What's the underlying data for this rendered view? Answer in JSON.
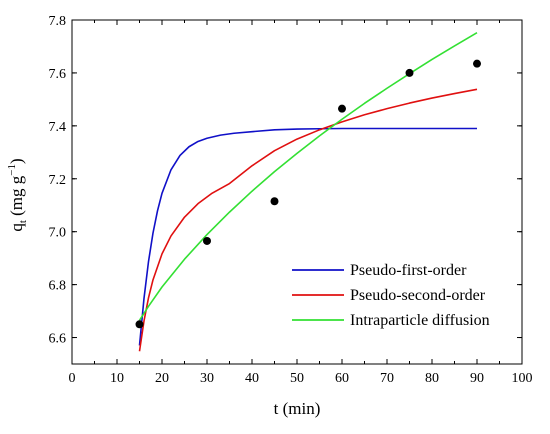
{
  "chart_data": {
    "type": "scatter",
    "xlabel": "t (min)",
    "ylabel": {
      "main": "q",
      "sub": "t",
      "unit": " (mg g",
      "sup": "−1",
      "close": ")"
    },
    "xlim": [
      0,
      100
    ],
    "ylim": [
      6.5,
      7.8
    ],
    "xticks": [
      0,
      10,
      20,
      30,
      40,
      50,
      60,
      70,
      80,
      90,
      100
    ],
    "xtick_labels": [
      "0",
      "10",
      "20",
      "30",
      "40",
      "50",
      "60",
      "70",
      "80",
      "90",
      "100"
    ],
    "yticks": [
      6.6,
      6.8,
      7.0,
      7.2,
      7.4,
      7.6,
      7.8
    ],
    "ytick_labels": [
      "6.6",
      "6.8",
      "7.0",
      "7.2",
      "7.4",
      "7.6",
      "7.8"
    ],
    "grid": false,
    "legend_position": "bottom-right",
    "points": {
      "x": [
        15,
        30,
        45,
        60,
        75,
        90
      ],
      "y": [
        6.65,
        6.965,
        7.115,
        7.465,
        7.6,
        7.635
      ],
      "color": "#000000"
    },
    "series": [
      {
        "name": "Pseudo-first-order",
        "color": "#1010c8",
        "x": [
          15,
          16,
          17,
          18,
          19,
          20,
          22,
          24,
          26,
          28,
          30,
          33,
          36,
          40,
          45,
          50,
          55,
          60,
          70,
          80,
          90
        ],
        "y": [
          6.57,
          6.748,
          6.887,
          6.995,
          7.079,
          7.145,
          7.234,
          7.288,
          7.321,
          7.341,
          7.353,
          7.365,
          7.372,
          7.378,
          7.385,
          7.388,
          7.389,
          7.39,
          7.39,
          7.39,
          7.39
        ]
      },
      {
        "name": "Pseudo-second-order",
        "color": "#e01010",
        "x": [
          15,
          16,
          17,
          18,
          20,
          22,
          25,
          28,
          31,
          35,
          40,
          45,
          50,
          55,
          60,
          65,
          70,
          75,
          80,
          85,
          90
        ],
        "y": [
          6.548,
          6.663,
          6.75,
          6.818,
          6.916,
          6.984,
          7.055,
          7.106,
          7.144,
          7.182,
          7.249,
          7.306,
          7.35,
          7.385,
          7.415,
          7.442,
          7.465,
          7.486,
          7.505,
          7.522,
          7.538
        ]
      },
      {
        "name": "Intraparticle diffusion",
        "color": "#33e033",
        "x": [
          15,
          17,
          20,
          25,
          30,
          35,
          40,
          45,
          50,
          55,
          60,
          65,
          70,
          75,
          80,
          85,
          90
        ],
        "y": [
          6.665,
          6.718,
          6.791,
          6.896,
          6.989,
          7.074,
          7.153,
          7.227,
          7.296,
          7.362,
          7.425,
          7.485,
          7.542,
          7.597,
          7.651,
          7.702,
          7.752
        ]
      }
    ]
  }
}
